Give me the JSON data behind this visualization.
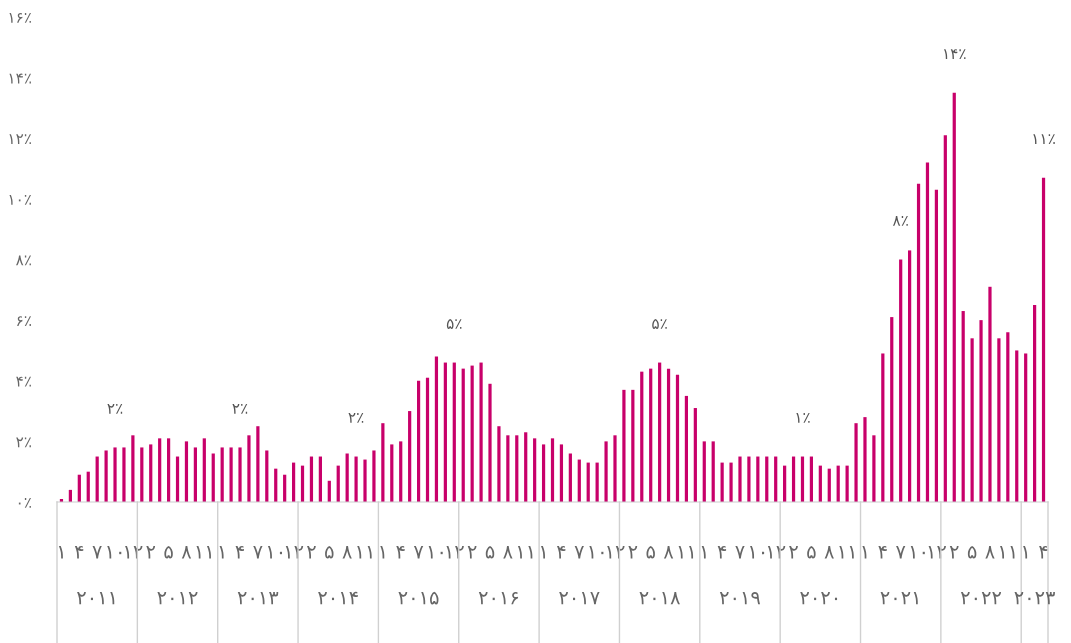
{
  "chart_data": {
    "type": "bar",
    "categories": [
      "۱",
      null,
      "۴",
      null,
      "۷",
      null,
      "۱۰",
      null,
      "۱۲",
      null,
      "۲",
      null,
      "۵",
      null,
      "۸",
      null,
      "۱۱",
      null,
      "۱",
      null,
      "۴",
      null,
      "۷",
      null,
      "۱۰",
      null,
      "۱۲",
      null,
      "۲",
      null,
      "۵",
      null,
      "۸",
      null,
      "۱۱",
      null,
      "۱",
      null,
      "۴",
      null,
      "۷",
      null,
      "۱۰",
      null,
      "۱۲",
      null,
      "۲",
      null,
      "۵",
      null,
      "۸",
      null,
      "۱۱",
      null,
      "۱",
      null,
      "۴",
      null,
      "۷",
      null,
      "۱۰",
      null,
      "۱۲",
      null,
      "۲",
      null,
      "۵",
      null,
      "۸",
      null,
      "۱۱",
      null,
      "۱",
      null,
      "۴",
      null,
      "۷",
      null,
      "۱۰",
      null,
      "۱۲",
      null,
      "۲",
      null,
      "۵",
      null,
      "۸",
      null,
      "۱۱",
      null,
      "۱",
      null,
      "۴",
      null,
      "۷",
      null,
      "۱۰",
      null,
      "۱۲",
      null,
      "۲",
      null,
      "۵",
      null,
      "۸",
      null,
      "۱۱",
      null,
      "۱",
      null,
      "۴"
    ],
    "values": [
      0.1,
      0.4,
      0.9,
      1.0,
      1.5,
      1.7,
      1.8,
      1.8,
      2.2,
      1.8,
      1.9,
      2.1,
      2.1,
      1.5,
      2.0,
      1.8,
      2.1,
      1.6,
      1.8,
      1.8,
      1.8,
      2.2,
      2.5,
      1.7,
      1.1,
      0.9,
      1.3,
      1.2,
      1.5,
      1.5,
      0.7,
      1.2,
      1.6,
      1.5,
      1.4,
      1.7,
      2.6,
      1.9,
      2.0,
      3.0,
      4.0,
      4.1,
      4.8,
      4.6,
      4.6,
      4.4,
      4.5,
      4.6,
      3.9,
      2.5,
      2.2,
      2.2,
      2.3,
      2.1,
      1.9,
      2.1,
      1.9,
      1.6,
      1.4,
      1.3,
      1.3,
      2.0,
      2.2,
      3.7,
      3.7,
      4.3,
      4.4,
      4.6,
      4.4,
      4.2,
      3.5,
      3.1,
      2.0,
      2.0,
      1.3,
      1.3,
      1.5,
      1.5,
      1.5,
      1.5,
      1.5,
      1.2,
      1.5,
      1.5,
      1.5,
      1.2,
      1.1,
      1.2,
      1.2,
      2.6,
      2.8,
      2.2,
      4.9,
      6.1,
      8.0,
      8.3,
      10.5,
      11.2,
      10.3,
      12.1,
      13.5,
      6.3,
      5.4,
      6.0,
      7.1,
      5.4,
      5.6,
      5.0,
      4.9,
      6.5,
      10.7
    ],
    "value_labels": [
      null,
      null,
      null,
      null,
      null,
      null,
      "۲٪",
      null,
      null,
      null,
      null,
      null,
      null,
      null,
      null,
      null,
      null,
      null,
      null,
      null,
      "۲٪",
      null,
      null,
      null,
      null,
      null,
      null,
      null,
      null,
      null,
      null,
      null,
      null,
      "۲٪",
      null,
      null,
      null,
      null,
      null,
      null,
      null,
      null,
      null,
      null,
      "۵٪",
      null,
      null,
      null,
      null,
      null,
      null,
      null,
      null,
      null,
      null,
      null,
      null,
      null,
      null,
      null,
      null,
      null,
      null,
      null,
      null,
      null,
      null,
      "۵٪",
      null,
      null,
      null,
      null,
      null,
      null,
      null,
      null,
      null,
      null,
      null,
      null,
      null,
      null,
      null,
      "۱٪",
      null,
      null,
      null,
      null,
      null,
      null,
      null,
      null,
      null,
      null,
      "۸٪",
      null,
      null,
      null,
      null,
      null,
      "۱۴٪",
      null,
      null,
      null,
      null,
      null,
      null,
      null,
      null,
      null,
      "۱۱٪"
    ],
    "color": "#c8006a",
    "ylim": [
      0,
      16
    ],
    "yticks": [
      {
        "value": 0,
        "label": "۰٪"
      },
      {
        "value": 2,
        "label": "۲٪"
      },
      {
        "value": 4,
        "label": "۴٪"
      },
      {
        "value": 6,
        "label": "۶٪"
      },
      {
        "value": 8,
        "label": "۸٪"
      },
      {
        "value": 10,
        "label": "۱۰٪"
      },
      {
        "value": 12,
        "label": "۱۲٪"
      },
      {
        "value": 14,
        "label": "۱۴٪"
      },
      {
        "value": 16,
        "label": "۱۶٪"
      }
    ],
    "grid": false,
    "annotations": [
      "۲۰۱۱",
      "۲۰۱۲",
      "۲۰۱۳",
      "۲۰۱۴",
      "۲۰۱۵",
      "۲۰۱۶",
      "۲۰۱۷",
      "۲۰۱۸",
      "۲۰۱۹",
      "۲۰۲۰",
      "۲۰۲۱",
      "۲۰۲۲",
      "۲۰۲۳"
    ]
  }
}
